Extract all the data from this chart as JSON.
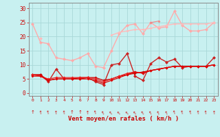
{
  "background_color": "#c8f0f0",
  "grid_color": "#a8d8d8",
  "x_values": [
    0,
    1,
    2,
    3,
    4,
    5,
    6,
    7,
    8,
    9,
    10,
    11,
    12,
    13,
    14,
    15,
    16,
    17,
    18,
    19,
    20,
    21,
    22,
    23
  ],
  "series": [
    {
      "color": "#ffaaaa",
      "linewidth": 1.0,
      "markersize": 2.5,
      "values": [
        24.5,
        18.0,
        17.5,
        12.5,
        12.0,
        11.5,
        12.5,
        14.0,
        9.5,
        9.0,
        15.0,
        21.0,
        24.0,
        24.5,
        21.0,
        25.0,
        23.0,
        23.5,
        29.0,
        24.0,
        22.0,
        22.0,
        22.5,
        25.0
      ]
    },
    {
      "color": "#ffbbbb",
      "linewidth": 1.0,
      "markersize": 2.5,
      "values": [
        null,
        19.5,
        null,
        null,
        null,
        null,
        null,
        null,
        null,
        null,
        null,
        null,
        null,
        null,
        null,
        null,
        null,
        null,
        null,
        null,
        null,
        null,
        null,
        null
      ]
    },
    {
      "color": "#ffbbbb",
      "linewidth": 1.0,
      "markersize": 2.0,
      "values": [
        null,
        null,
        null,
        null,
        null,
        null,
        null,
        null,
        null,
        null,
        20.5,
        21.5,
        22.0,
        22.5,
        22.5,
        23.0,
        23.5,
        24.0,
        24.5,
        24.5,
        24.5,
        24.5,
        24.5,
        25.0
      ]
    },
    {
      "color": "#ee8888",
      "linewidth": 0.8,
      "markersize": 2.0,
      "values": [
        null,
        null,
        null,
        null,
        null,
        null,
        null,
        null,
        null,
        null,
        null,
        null,
        null,
        null,
        null,
        25.0,
        25.5,
        null,
        null,
        null,
        null,
        null,
        null,
        null
      ]
    },
    {
      "color": "#cc2222",
      "linewidth": 1.0,
      "markersize": 2.5,
      "values": [
        6.5,
        6.5,
        4.0,
        8.5,
        5.0,
        5.0,
        5.0,
        5.5,
        4.0,
        3.0,
        10.0,
        10.5,
        14.0,
        6.0,
        4.5,
        10.5,
        12.5,
        11.0,
        12.0,
        9.0,
        9.5,
        9.5,
        9.5,
        12.5
      ]
    },
    {
      "color": "#cc0000",
      "linewidth": 0.9,
      "markersize": 2.0,
      "values": [
        6.5,
        6.5,
        4.5,
        5.0,
        5.0,
        5.0,
        5.5,
        5.5,
        5.5,
        4.5,
        5.0,
        6.0,
        6.5,
        7.0,
        7.5,
        8.0,
        8.5,
        9.0,
        9.5,
        9.5,
        9.5,
        9.5,
        9.5,
        10.0
      ]
    },
    {
      "color": "#ee2222",
      "linewidth": 0.9,
      "markersize": 2.0,
      "values": [
        6.5,
        6.0,
        5.0,
        5.5,
        5.5,
        5.5,
        5.5,
        5.5,
        5.0,
        4.0,
        5.0,
        6.0,
        7.0,
        7.5,
        7.0,
        8.0,
        8.5,
        9.0,
        9.5,
        9.5,
        9.5,
        9.5,
        9.5,
        10.0
      ]
    },
    {
      "color": "#dd0000",
      "linewidth": 0.9,
      "markersize": 2.0,
      "values": [
        6.0,
        6.0,
        4.5,
        5.0,
        5.0,
        5.0,
        5.0,
        5.0,
        4.5,
        3.5,
        4.5,
        5.5,
        6.5,
        7.5,
        7.0,
        8.0,
        8.5,
        9.0,
        9.5,
        9.5,
        9.5,
        9.5,
        9.5,
        10.0
      ]
    }
  ],
  "wind_angles": [
    90,
    80,
    75,
    85,
    80,
    90,
    90,
    85,
    70,
    60,
    50,
    45,
    45,
    50,
    55,
    60,
    65,
    65,
    70,
    75,
    75,
    80,
    80,
    85
  ],
  "ylabel_values": [
    0,
    5,
    10,
    15,
    20,
    25,
    30
  ],
  "ylim": [
    -1,
    32
  ],
  "xlim": [
    -0.5,
    23.5
  ],
  "xlabel": "Vent moyen/en rafales ( km/h )",
  "xlabel_color": "#cc0000",
  "tick_color": "#cc0000",
  "axis_color": "#888888"
}
